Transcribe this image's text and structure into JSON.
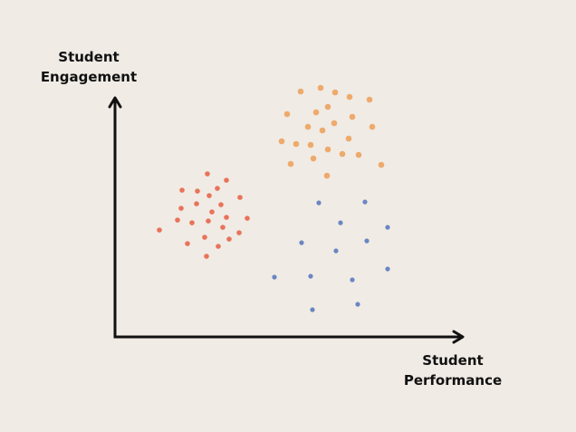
{
  "diagram": {
    "y_axis_label": [
      "Student",
      "Engagement"
    ],
    "x_axis_label": [
      "Student",
      "Performance"
    ],
    "axis_color": "#111111",
    "background": "#f0ebe5"
  },
  "clusters": [
    {
      "id": "orange-cluster",
      "color": "#eeaa6c",
      "radius": 3.3,
      "points": [
        [
          332,
          101
        ],
        [
          354,
          97
        ],
        [
          370,
          102
        ],
        [
          386,
          107
        ],
        [
          408,
          110
        ],
        [
          317,
          126
        ],
        [
          349,
          124
        ],
        [
          362,
          118
        ],
        [
          389,
          129
        ],
        [
          340,
          140
        ],
        [
          356,
          144
        ],
        [
          369,
          136
        ],
        [
          411,
          140
        ],
        [
          311,
          156
        ],
        [
          327,
          159
        ],
        [
          343,
          160
        ],
        [
          362,
          165
        ],
        [
          385,
          153
        ],
        [
          346,
          175
        ],
        [
          378,
          170
        ],
        [
          396,
          171
        ],
        [
          321,
          181
        ],
        [
          421,
          182
        ],
        [
          361,
          194
        ]
      ]
    },
    {
      "id": "red-cluster",
      "color": "#e8735a",
      "radius": 2.8,
      "points": [
        [
          229,
          192
        ],
        [
          250,
          199
        ],
        [
          201,
          210
        ],
        [
          218,
          211
        ],
        [
          240,
          208
        ],
        [
          265,
          218
        ],
        [
          231,
          216
        ],
        [
          200,
          230
        ],
        [
          217,
          225
        ],
        [
          244,
          226
        ],
        [
          234,
          234
        ],
        [
          250,
          240
        ],
        [
          273,
          241
        ],
        [
          196,
          243
        ],
        [
          212,
          246
        ],
        [
          230,
          244
        ],
        [
          246,
          251
        ],
        [
          176,
          254
        ],
        [
          264,
          257
        ],
        [
          226,
          262
        ],
        [
          253,
          264
        ],
        [
          207,
          269
        ],
        [
          241,
          272
        ],
        [
          228,
          283
        ]
      ]
    },
    {
      "id": "blue-cluster",
      "color": "#6a86c2",
      "radius": 2.6,
      "points": [
        [
          352,
          224
        ],
        [
          403,
          223
        ],
        [
          376,
          246
        ],
        [
          428,
          251
        ],
        [
          333,
          268
        ],
        [
          405,
          266
        ],
        [
          371,
          277
        ],
        [
          303,
          306
        ],
        [
          343,
          305
        ],
        [
          389,
          309
        ],
        [
          428,
          297
        ],
        [
          345,
          342
        ],
        [
          395,
          336
        ]
      ]
    }
  ]
}
